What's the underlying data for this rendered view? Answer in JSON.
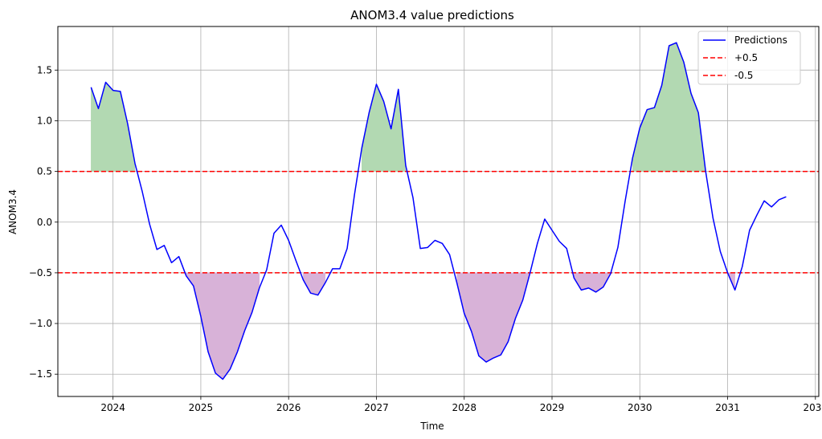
{
  "chart_data": {
    "type": "line",
    "title": "ANOM3.4 value predictions",
    "xlabel": "Time",
    "ylabel": "ANOM3.4",
    "xlim": [
      "2023-05-15",
      "2032-01-15"
    ],
    "ylim": [
      -1.72,
      1.93
    ],
    "grid": true,
    "legend_position": "top-right",
    "x_ticks": [
      "2024",
      "2025",
      "2026",
      "2027",
      "2028",
      "2029",
      "2030",
      "2031",
      "2032"
    ],
    "y_ticks": [
      "−1.5",
      "−1.0",
      "−0.5",
      "0.0",
      "0.5",
      "1.0",
      "1.5"
    ],
    "series": [
      {
        "name": "Predictions",
        "color": "#0000ff",
        "style": "solid",
        "x": [
          "2023-10",
          "2023-11",
          "2023-12",
          "2024-01",
          "2024-02",
          "2024-03",
          "2024-04",
          "2024-05",
          "2024-06",
          "2024-07",
          "2024-08",
          "2024-09",
          "2024-10",
          "2024-11",
          "2024-12",
          "2025-01",
          "2025-02",
          "2025-03",
          "2025-04",
          "2025-05",
          "2025-06",
          "2025-07",
          "2025-08",
          "2025-09",
          "2025-10",
          "2025-11",
          "2025-12",
          "2026-01",
          "2026-02",
          "2026-03",
          "2026-04",
          "2026-05",
          "2026-06",
          "2026-07",
          "2026-08",
          "2026-09",
          "2026-10",
          "2026-11",
          "2026-12",
          "2027-01",
          "2027-02",
          "2027-03",
          "2027-04",
          "2027-05",
          "2027-06",
          "2027-07",
          "2027-08",
          "2027-09",
          "2027-10",
          "2027-11",
          "2027-12",
          "2028-01",
          "2028-02",
          "2028-03",
          "2028-04",
          "2028-05",
          "2028-06",
          "2028-07",
          "2028-08",
          "2028-09",
          "2028-10",
          "2028-11",
          "2028-12",
          "2029-01",
          "2029-02",
          "2029-03",
          "2029-04",
          "2029-05",
          "2029-06",
          "2029-07",
          "2029-08",
          "2029-09",
          "2029-10",
          "2029-11",
          "2029-12",
          "2030-01",
          "2030-02",
          "2030-03",
          "2030-04",
          "2030-05",
          "2030-06",
          "2030-07",
          "2030-08",
          "2030-09",
          "2030-10",
          "2030-11",
          "2030-12",
          "2031-01",
          "2031-02",
          "2031-03",
          "2031-04",
          "2031-05",
          "2031-06",
          "2031-07",
          "2031-08",
          "2031-09"
        ],
        "values": [
          1.33,
          1.12,
          1.38,
          1.3,
          1.29,
          0.97,
          0.58,
          0.3,
          -0.02,
          -0.27,
          -0.23,
          -0.4,
          -0.34,
          -0.53,
          -0.63,
          -0.93,
          -1.28,
          -1.49,
          -1.55,
          -1.45,
          -1.28,
          -1.07,
          -0.89,
          -0.65,
          -0.47,
          -0.11,
          -0.03,
          -0.18,
          -0.38,
          -0.57,
          -0.7,
          -0.72,
          -0.6,
          -0.46,
          -0.46,
          -0.26,
          0.27,
          0.73,
          1.08,
          1.36,
          1.19,
          0.92,
          1.31,
          0.56,
          0.24,
          -0.26,
          -0.25,
          -0.18,
          -0.21,
          -0.32,
          -0.6,
          -0.9,
          -1.08,
          -1.32,
          -1.38,
          -1.34,
          -1.31,
          -1.18,
          -0.95,
          -0.77,
          -0.5,
          -0.21,
          0.03,
          -0.08,
          -0.19,
          -0.26,
          -0.55,
          -0.67,
          -0.65,
          -0.69,
          -0.64,
          -0.51,
          -0.25,
          0.21,
          0.63,
          0.93,
          1.11,
          1.13,
          1.35,
          1.74,
          1.77,
          1.58,
          1.27,
          1.08,
          0.5,
          0.04,
          -0.29,
          -0.5,
          -0.67,
          -0.44,
          -0.08,
          0.07,
          0.21,
          0.15,
          0.22,
          0.25
        ]
      },
      {
        "name": "+0.5",
        "color": "#ff0000",
        "style": "dashed",
        "y": 0.5
      },
      {
        "name": "-0.5",
        "color": "#ff0000",
        "style": "dashed",
        "y": -0.5
      }
    ],
    "fills": [
      {
        "where": "above",
        "threshold": 0.5,
        "color": "#b2d9b2"
      },
      {
        "where": "below",
        "threshold": -0.5,
        "color": "#d8b2d8"
      }
    ]
  }
}
